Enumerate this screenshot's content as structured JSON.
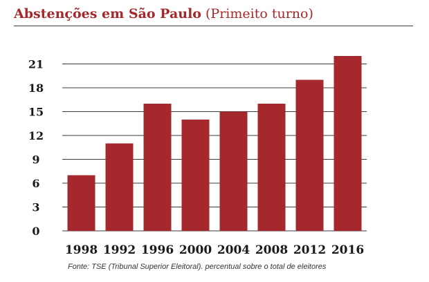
{
  "header": {
    "title": "Abstenções em São Paulo",
    "subtitle": "(Primeito turno)"
  },
  "source": "Fonte: TSE (Tribunal Superior Eleitoral). percentual sobre o total de eleitores",
  "chart_data": {
    "type": "bar",
    "title": "Abstenções em São Paulo",
    "subtitle": "(Primeito turno)",
    "xlabel": "",
    "ylabel": "",
    "categories": [
      "1998",
      "1992",
      "1996",
      "2000",
      "2004",
      "2008",
      "2012",
      "2016"
    ],
    "values": [
      7,
      11,
      16,
      14,
      15,
      16,
      19,
      22
    ],
    "yticks": [
      0,
      3,
      6,
      9,
      12,
      15,
      18,
      21
    ],
    "ylim": [
      0,
      22
    ],
    "grid": true,
    "legend": "none",
    "bar_color": "#a4282c"
  },
  "colors": {
    "accent": "#a4282c",
    "grid": "#3a3a3a",
    "text": "#1a1a1a"
  }
}
